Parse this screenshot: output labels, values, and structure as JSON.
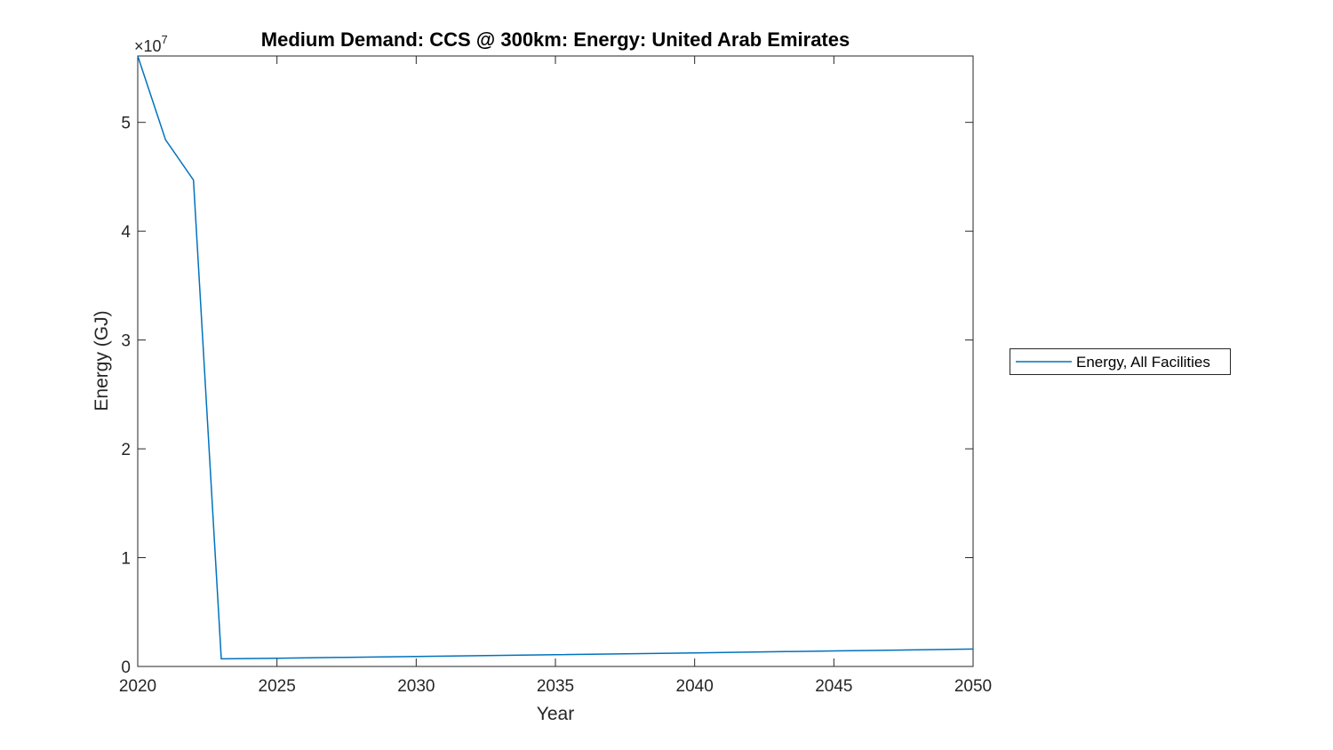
{
  "figure": {
    "background": "#ffffff",
    "axes_color": "#262626",
    "accent": "#0072BD"
  },
  "chart_data": {
    "type": "line",
    "title": "Medium Demand: CCS @ 300km: Energy: United Arab Emirates",
    "xlabel": "Year",
    "ylabel": "Energy (GJ)",
    "y_exponent_base": "×10",
    "y_exponent_power": "7",
    "grid": false,
    "legend_position": "outside-right",
    "xlim": [
      2020,
      2050
    ],
    "ylim": [
      0,
      56100000
    ],
    "x_ticks": {
      "values": [
        2020,
        2025,
        2030,
        2035,
        2040,
        2045,
        2050
      ],
      "labels": [
        "2020",
        "2025",
        "2030",
        "2035",
        "2040",
        "2045",
        "2050"
      ]
    },
    "y_ticks": {
      "values": [
        0,
        10000000,
        20000000,
        30000000,
        40000000,
        50000000
      ],
      "labels": [
        "0",
        "1",
        "2",
        "3",
        "4",
        "5"
      ]
    },
    "series": [
      {
        "name": "Energy, All Facilities",
        "color": "#0072BD",
        "x": [
          2020,
          2021,
          2022,
          2023,
          2025,
          2030,
          2035,
          2040,
          2045,
          2050
        ],
        "y": [
          56100000,
          48400000,
          44700000,
          700000,
          760000,
          920000,
          1080000,
          1250000,
          1430000,
          1600000
        ]
      }
    ]
  },
  "legend": {
    "label": "Energy, All Facilities"
  }
}
